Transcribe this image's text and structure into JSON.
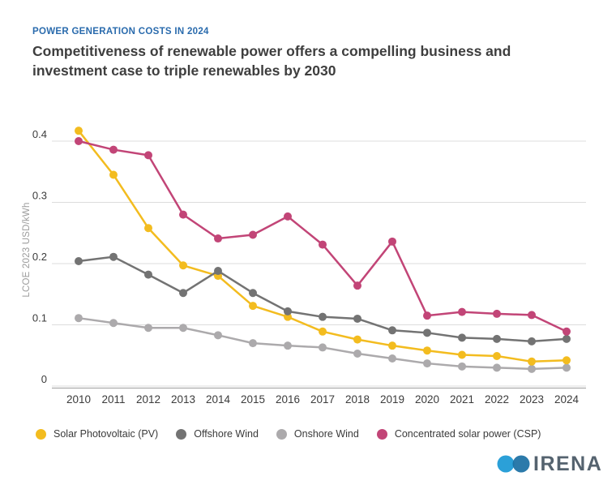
{
  "header": {
    "eyebrow": "POWER GENERATION COSTS IN 2024",
    "title_lines": [
      "Competitiveness of renewable power offers a compelling business and",
      "investment case to triple renewables by 2030"
    ]
  },
  "chart_data": {
    "type": "line",
    "title": "Competitiveness of renewable power offers a compelling business and investment case to triple renewables by 2030",
    "subtitle": "POWER GENERATION COSTS IN 2024",
    "xlabel": "",
    "ylabel": "LCOE 2023 USD/kWh",
    "ylim": [
      0,
      0.42
    ],
    "yticks": [
      0,
      0.1,
      0.2,
      0.3,
      0.4
    ],
    "ytick_labels": [
      "0",
      "0.1",
      "0.2",
      "0.3",
      "0.4"
    ],
    "grid": true,
    "legend_position": "bottom",
    "marker": "circle",
    "x": [
      2010,
      2011,
      2012,
      2013,
      2014,
      2015,
      2016,
      2017,
      2018,
      2019,
      2020,
      2021,
      2022,
      2023,
      2024
    ],
    "series": [
      {
        "name": "Solar Photovoltaic (PV)",
        "color": "#F3BC1F",
        "values": [
          0.417,
          0.345,
          0.258,
          0.197,
          0.18,
          0.131,
          0.113,
          0.089,
          0.076,
          0.066,
          0.058,
          0.051,
          0.049,
          0.04,
          0.042
        ]
      },
      {
        "name": "Offshore Wind",
        "color": "#737373",
        "values": [
          0.204,
          0.211,
          0.182,
          0.152,
          0.188,
          0.152,
          0.122,
          0.113,
          0.11,
          0.091,
          0.087,
          0.079,
          0.077,
          0.073,
          0.077
        ]
      },
      {
        "name": "Onshore Wind",
        "color": "#ACAAAC",
        "values": [
          0.111,
          0.103,
          0.095,
          0.095,
          0.083,
          0.07,
          0.066,
          0.063,
          0.053,
          0.045,
          0.037,
          0.032,
          0.03,
          0.028,
          0.03
        ]
      },
      {
        "name": "Concentrated solar power (CSP)",
        "color": "#C24577",
        "values": [
          0.4,
          0.386,
          0.377,
          0.28,
          0.241,
          0.247,
          0.277,
          0.231,
          0.164,
          0.236,
          0.115,
          0.121,
          0.118,
          0.116,
          0.089
        ]
      }
    ]
  },
  "colors": {
    "eyebrow_blue": "#2A6BAD",
    "title_gray": "#3E3E3E",
    "gridline": "#DCDCDC",
    "axis_line": "#ABABAB",
    "tick_text": "#3B3B3B",
    "y_axis_title": "#9C9C9C",
    "logo_circle_light": "#2BA0D8",
    "logo_circle_dark": "#1A6FA3",
    "logo_text_color": "#55636F"
  },
  "branding": {
    "logo_text": "IRENA"
  }
}
